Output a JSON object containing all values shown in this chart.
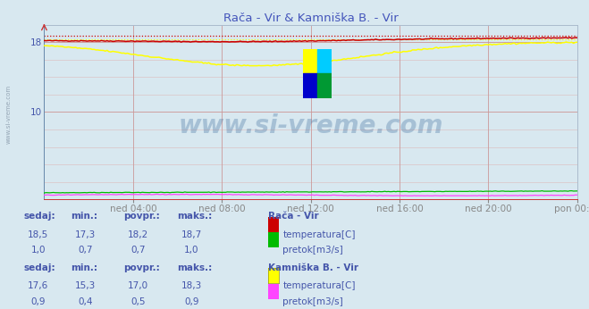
{
  "title": "Rača - Vir & Kamniška B. - Vir",
  "title_color": "#4455bb",
  "bg_color": "#d8e8f0",
  "plot_bg_color": "#d8e8f0",
  "grid_color_major": "#cc9999",
  "grid_color_minor": "#ddbbbb",
  "xlim": [
    0,
    288
  ],
  "ylim": [
    0,
    20
  ],
  "xtick_labels": [
    "ned 04:00",
    "ned 08:00",
    "ned 12:00",
    "ned 16:00",
    "ned 20:00",
    "pon 00:00"
  ],
  "xtick_positions": [
    48,
    96,
    144,
    192,
    240,
    288
  ],
  "raca_temp_color": "#cc0000",
  "raca_pretok_color": "#00bb00",
  "kamnica_temp_color": "#ffff00",
  "kamnica_pretok_color": "#ff44ff",
  "watermark_text": "www.si-vreme.com",
  "watermark_color": "#336699",
  "watermark_alpha": 0.3,
  "stats_color": "#4455aa",
  "raca_sedaj": "18,5",
  "raca_min": "17,3",
  "raca_povpr": "18,2",
  "raca_maks": "18,7",
  "raca_pretok_sedaj": "1,0",
  "raca_pretok_min": "0,7",
  "raca_pretok_povpr": "0,7",
  "raca_pretok_maks": "1,0",
  "kamnica_sedaj": "17,6",
  "kamnica_min": "15,3",
  "kamnica_povpr": "17,0",
  "kamnica_maks": "18,3",
  "kamnica_pretok_sedaj": "0,9",
  "kamnica_pretok_min": "0,4",
  "kamnica_pretok_povpr": "0,5",
  "kamnica_pretok_maks": "0,9",
  "logo_colors": [
    "#ffff00",
    "#00ccff",
    "#0000cc",
    "#009933"
  ],
  "left_label": "www.si-vreme.com"
}
